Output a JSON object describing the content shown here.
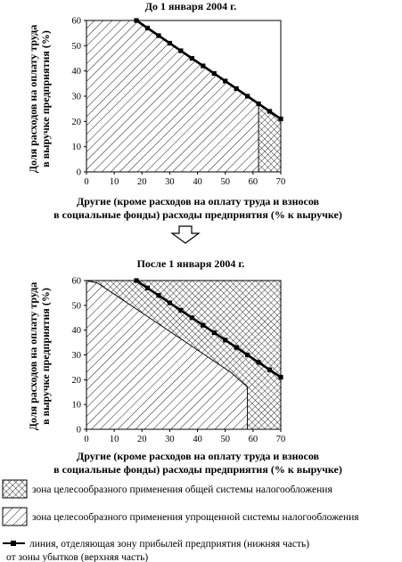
{
  "chart_data": [
    {
      "type": "area",
      "title": "До 1 января 2004 г.",
      "xlabel_lines": [
        "Другие (кроме расходов на оплату труда и взносов",
        "в социальные фонды) расходы предприятия (% к выручке)"
      ],
      "ylabel_lines": [
        "Доля расходов на оплату труда",
        "в выручке предприятия (%)"
      ],
      "xlim": [
        0,
        70
      ],
      "ylim": [
        0,
        60
      ],
      "xticks": [
        "0",
        "10",
        "20",
        "30",
        "40",
        "50",
        "60",
        "70"
      ],
      "yticks": [
        "0",
        "10",
        "20",
        "30",
        "40",
        "50",
        "60"
      ],
      "grid": false,
      "simplified_zone": [
        [
          0,
          0
        ],
        [
          0,
          60
        ],
        [
          18,
          60
        ],
        [
          62,
          27
        ],
        [
          62,
          0
        ]
      ],
      "general_zone": [
        [
          62,
          0
        ],
        [
          62,
          27
        ],
        [
          70,
          21
        ],
        [
          70,
          0
        ]
      ],
      "profit_line": {
        "x": [
          18,
          22,
          26,
          30,
          34,
          38,
          42,
          46,
          50,
          54,
          58,
          62,
          66,
          70
        ],
        "y": [
          60,
          57,
          54,
          51,
          48,
          45,
          42,
          39,
          36,
          33,
          30,
          27,
          24,
          21
        ]
      }
    },
    {
      "type": "area",
      "title": "После 1 января 2004 г.",
      "xlabel_lines": [
        "Другие (кроме расходов на оплату труда и взносов",
        "в социальные фонды) расходы предприятия (% к выручке)"
      ],
      "ylabel_lines": [
        "Доля расходов на оплату труда",
        "в выручке предприятия (%)"
      ],
      "xlim": [
        0,
        70
      ],
      "ylim": [
        0,
        60
      ],
      "xticks": [
        "0",
        "10",
        "20",
        "30",
        "40",
        "50",
        "60",
        "70"
      ],
      "yticks": [
        "0",
        "10",
        "20",
        "30",
        "40",
        "50",
        "60"
      ],
      "grid": false,
      "simplified_zone": [
        [
          0,
          0
        ],
        [
          0,
          60
        ],
        [
          4,
          59
        ],
        [
          12,
          53
        ],
        [
          20,
          47
        ],
        [
          28,
          41
        ],
        [
          36,
          35
        ],
        [
          44,
          29
        ],
        [
          52,
          23
        ],
        [
          56,
          19
        ],
        [
          58,
          17
        ],
        [
          58,
          0
        ]
      ],
      "general_zone": [
        [
          0,
          60
        ],
        [
          70,
          60
        ],
        [
          70,
          0
        ],
        [
          58,
          0
        ],
        [
          58,
          17
        ],
        [
          56,
          19
        ],
        [
          52,
          23
        ],
        [
          44,
          29
        ],
        [
          36,
          35
        ],
        [
          28,
          41
        ],
        [
          20,
          47
        ],
        [
          12,
          53
        ],
        [
          4,
          59
        ]
      ],
      "profit_line": {
        "x": [
          18,
          22,
          26,
          30,
          34,
          38,
          42,
          46,
          50,
          54,
          58,
          62,
          66,
          70
        ],
        "y": [
          60,
          57,
          54,
          51,
          48,
          45,
          42,
          39,
          36,
          33,
          30,
          27,
          24,
          21
        ]
      }
    }
  ],
  "legend": [
    {
      "key": "general",
      "pattern": "crosshatch",
      "text": "зона целесообразного применения общей системы налогообложения"
    },
    {
      "key": "simplified",
      "pattern": "diagonal",
      "text": "зона целесообразного применения упрощенной системы налогообложения"
    },
    {
      "key": "line",
      "pattern": "line",
      "text_lines": [
        "линия, отделяющая зону прибылей предприятия (нижняя часть)",
        "от зоны убытков (верхняя часть)"
      ]
    }
  ],
  "arrow_icon": "down-arrow-icon",
  "colors": {
    "ink": "#000000",
    "background": "#ffffff"
  }
}
